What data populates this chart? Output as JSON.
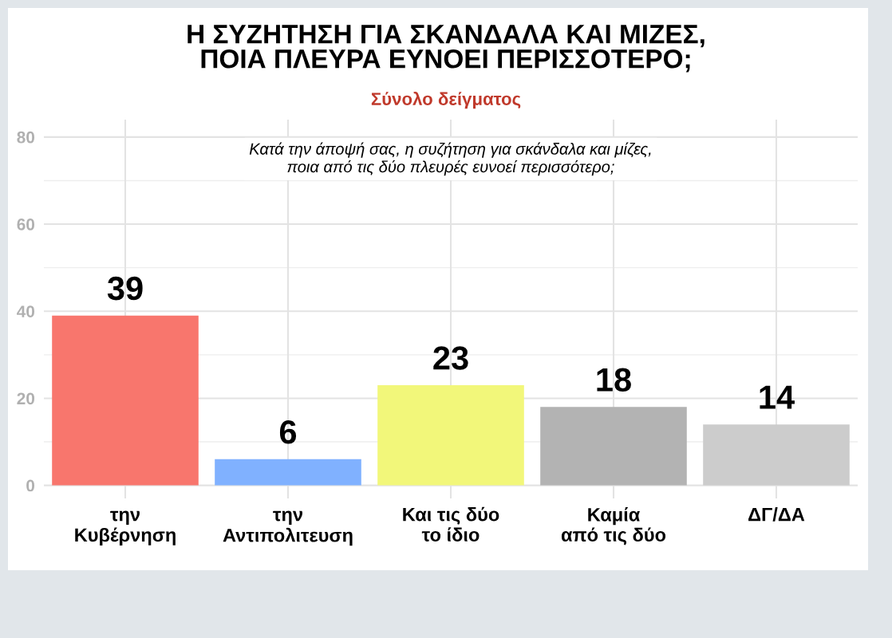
{
  "chart_data": {
    "type": "bar",
    "title": "Η ΣΥΖΗΤΗΣΗ ΓΙΑ ΣΚΑΝΔΑΛΑ ΚΑΙ ΜΙΖΕΣ,\nΠΟΙΑ ΠΛΕΥΡΑ ΕΥΝΟΕΙ ΠΕΡΙΣΣΟΤΕΡΟ;",
    "subtitle": "Σύνολο δείγματος",
    "annotations": [
      "Κατά την άποψή σας, η συζήτηση για σκάνδαλα και μίζες,\nποια από τις δύο πλευρές ευνοεί περισσότερο;"
    ],
    "categories": [
      "την\nΚυβέρνηση",
      "την\nΑντιπολιτευση",
      "Και τις δύο\nτο ίδιο",
      "Καμία\nαπό τις δύο",
      "ΔΓ/ΔΑ"
    ],
    "values": [
      39,
      6,
      23,
      18,
      14
    ],
    "colors": [
      "#f8766d",
      "#80b1ff",
      "#f2f77a",
      "#b3b3b3",
      "#cccccc"
    ],
    "ylim": [
      -3,
      84
    ],
    "yticks": [
      0,
      20,
      40,
      60,
      80
    ],
    "grid": true,
    "data_labels": true
  }
}
